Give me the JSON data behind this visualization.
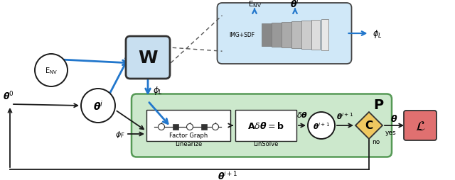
{
  "bg_color": "#ffffff",
  "blue": "#2277cc",
  "black": "#1a1a1a",
  "gray_dash": "#555555",
  "circle_fill": "#ffffff",
  "circle_edge": "#1a1a1a",
  "W_box_fill": "#c8dff0",
  "W_box_edge": "#333333",
  "net_box_fill": "#d0e8f8",
  "net_box_edge": "#444444",
  "P_box_fill": "#cce8cc",
  "P_box_edge": "#559955",
  "inner_fill": "#ffffff",
  "inner_edge": "#222222",
  "C_fill": "#f0c860",
  "C_edge": "#333333",
  "L_fill": "#e07070",
  "L_edge": "#333333",
  "layer_colors": [
    "#888888",
    "#999999",
    "#aaaaaa",
    "#bbbbbb",
    "#cccccc",
    "#dddddd",
    "#e8e8e8"
  ],
  "layer_widths": [
    22,
    20,
    18,
    16,
    14,
    12,
    10
  ],
  "layer_heights": [
    32,
    34,
    36,
    38,
    40,
    42,
    44
  ]
}
